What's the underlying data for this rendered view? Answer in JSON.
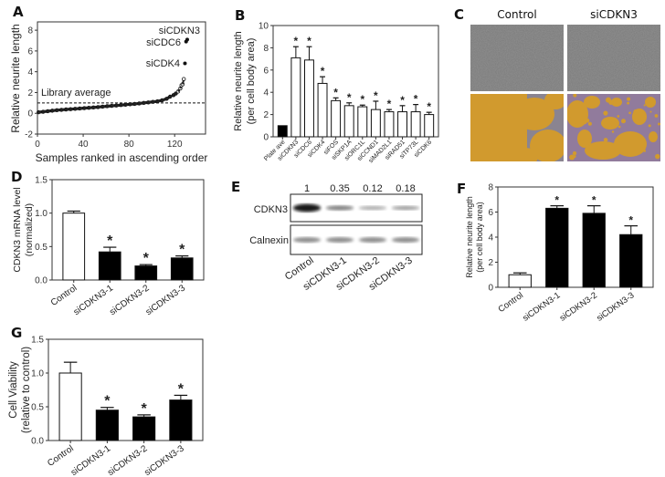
{
  "panel_labels": [
    "A",
    "B",
    "C",
    "D",
    "E",
    "F",
    "G"
  ],
  "chart_data": [
    {
      "panel": "A",
      "type": "scatter",
      "xlabel": "Samples ranked in ascending order",
      "ylabel": "Relative neurite length",
      "xlim": [
        0,
        147
      ],
      "ylim": [
        -2,
        8.8
      ],
      "xticks": [
        0,
        40,
        80,
        120
      ],
      "xtick_labels": [
        "0",
        "40",
        "80",
        "120"
      ],
      "yticks": [
        -2,
        0,
        2,
        4,
        6,
        8
      ],
      "ytick_labels": [
        "-2",
        "0",
        "2",
        "4",
        "6",
        "8"
      ],
      "reference_line": {
        "y": 1,
        "style": "dashed",
        "label": "Library average"
      },
      "x": [
        1,
        5,
        9,
        13,
        17,
        21,
        25,
        29,
        33,
        37,
        41,
        45,
        49,
        53,
        57,
        61,
        65,
        69,
        73,
        77,
        81,
        85,
        89,
        93,
        97,
        101,
        105,
        109,
        113,
        116,
        119,
        121,
        123,
        125,
        126,
        127,
        128,
        129,
        130,
        131
      ],
      "y": [
        0.1,
        0.15,
        0.2,
        0.25,
        0.3,
        0.33,
        0.37,
        0.4,
        0.43,
        0.46,
        0.5,
        0.53,
        0.56,
        0.6,
        0.64,
        0.68,
        0.72,
        0.75,
        0.79,
        0.83,
        0.87,
        0.9,
        0.95,
        1.0,
        1.05,
        1.1,
        1.15,
        1.25,
        1.4,
        1.6,
        1.75,
        1.9,
        2.1,
        2.4,
        2.7,
        2.8,
        3.3,
        4.8,
        6.9,
        7.1
      ],
      "annotations": [
        {
          "text": "siCDKN3",
          "x": 131,
          "y": 7.1
        },
        {
          "text": "siCDC6",
          "x": 130,
          "y": 6.9
        },
        {
          "text": "siCDK4",
          "x": 129,
          "y": 4.8
        }
      ]
    },
    {
      "panel": "B",
      "type": "bar",
      "ylabel": [
        "Relative neurite length",
        "(per cell body area)"
      ],
      "ylim": [
        0,
        10
      ],
      "yticks": [
        0,
        2,
        4,
        6,
        8,
        10
      ],
      "ytick_labels": [
        "0",
        "2",
        "4",
        "6",
        "8",
        "10"
      ],
      "categories": [
        "Plate ave",
        "siCDKN3",
        "siCDC6",
        "siCDK4",
        "siFOS",
        "siSKP1A",
        "siORC1L",
        "siCCND1",
        "siMAD2L1",
        "siRAD51",
        "siTP73L",
        "siCDK6"
      ],
      "values": [
        1.0,
        7.1,
        6.9,
        4.8,
        3.25,
        2.8,
        2.7,
        2.45,
        2.25,
        2.25,
        2.25,
        2.0
      ],
      "errors": [
        0,
        1.0,
        1.2,
        0.6,
        0.25,
        0.25,
        0.15,
        0.75,
        0.2,
        0.55,
        0.65,
        0.2
      ],
      "significance": [
        "",
        "*",
        "*",
        "*",
        "*",
        "*",
        "*",
        "*",
        "*",
        "*",
        "*",
        "*"
      ],
      "fills": [
        "#000000",
        "#ffffff",
        "#ffffff",
        "#ffffff",
        "#ffffff",
        "#ffffff",
        "#ffffff",
        "#ffffff",
        "#ffffff",
        "#ffffff",
        "#ffffff",
        "#ffffff"
      ]
    },
    {
      "panel": "D",
      "type": "bar",
      "ylabel": [
        "CDKN3 mRNA level",
        "(normalized)"
      ],
      "ylim": [
        0,
        1.5
      ],
      "yticks": [
        0,
        0.5,
        1.0,
        1.5
      ],
      "ytick_labels": [
        "0.0",
        "0.5",
        "1.0",
        "1.5"
      ],
      "categories": [
        "Control",
        "siCDKN3-1",
        "siCDKN3-2",
        "siCDKN3-3"
      ],
      "values": [
        1.0,
        0.42,
        0.21,
        0.33
      ],
      "errors": [
        0.03,
        0.07,
        0.02,
        0.03
      ],
      "significance": [
        "",
        "*",
        "*",
        "*"
      ],
      "fills": [
        "#ffffff",
        "#000000",
        "#000000",
        "#000000"
      ]
    },
    {
      "panel": "F",
      "type": "bar",
      "ylabel": [
        "Relative neurite length",
        "(per cell body area)"
      ],
      "ylim": [
        0,
        8
      ],
      "yticks": [
        0,
        2,
        4,
        6,
        8
      ],
      "ytick_labels": [
        "0",
        "2",
        "4",
        "6",
        "8"
      ],
      "categories": [
        "Control",
        "siCDKN3-1",
        "siCDKN3-2",
        "siCDKN3-3"
      ],
      "values": [
        1.0,
        6.3,
        5.9,
        4.2
      ],
      "errors": [
        0.15,
        0.2,
        0.6,
        0.7
      ],
      "significance": [
        "",
        "*",
        "*",
        "*"
      ],
      "fills": [
        "#ffffff",
        "#000000",
        "#000000",
        "#000000"
      ]
    },
    {
      "panel": "G",
      "type": "bar",
      "ylabel": [
        "Cell Viability",
        "(relative to control)"
      ],
      "ylim": [
        0,
        1.5
      ],
      "yticks": [
        0,
        0.5,
        1.0,
        1.5
      ],
      "ytick_labels": [
        "0.0",
        "0.5",
        "1.0",
        "1.5"
      ],
      "categories": [
        "Control",
        "siCDKN3-1",
        "siCDKN3-2",
        "siCDKN3-3"
      ],
      "values": [
        1.0,
        0.45,
        0.35,
        0.6
      ],
      "errors": [
        0.16,
        0.04,
        0.03,
        0.07
      ],
      "significance": [
        "",
        "*",
        "*",
        "*"
      ],
      "fills": [
        "#ffffff",
        "#000000",
        "#000000",
        "#000000"
      ]
    }
  ],
  "panel_c": {
    "columns": [
      "Control",
      "siCDKN3"
    ],
    "colors": {
      "raw": "#7a7a7a",
      "mask_cells": "#d19a2e",
      "mask_bg": "#8a8490",
      "mask_neurite": "#9c6fb0"
    }
  },
  "panel_e": {
    "quantification": [
      "1",
      "0.35",
      "0.12",
      "0.18"
    ],
    "band_intensity": [
      1,
      0.35,
      0.12,
      0.18
    ],
    "rows": [
      "CDKN3",
      "Calnexin"
    ],
    "lanes": [
      "Control",
      "siCDKN3-1",
      "siCDKN3-2",
      "siCDKN3-3"
    ]
  }
}
